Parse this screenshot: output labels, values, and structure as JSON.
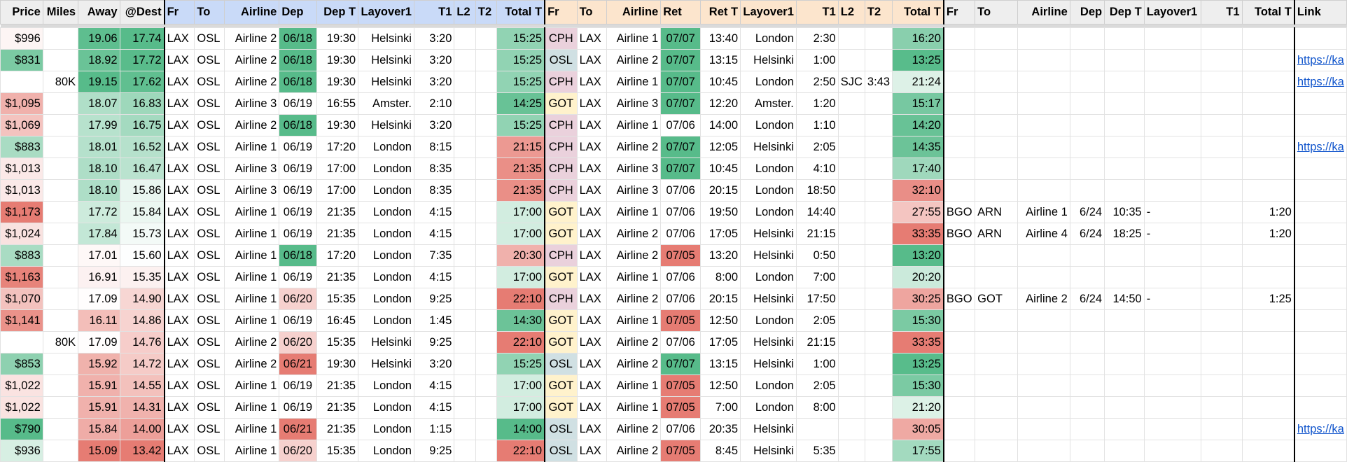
{
  "headers": [
    "Price",
    "Miles",
    "Away",
    "@Dest",
    "Fr",
    "To",
    "Airline",
    "Dep",
    "Dep T",
    "Layover1",
    "T1",
    "L2",
    "T2",
    "Total T",
    "Fr",
    "To",
    "Airline",
    "Ret",
    "Ret T",
    "Layover1",
    "T1",
    "L2",
    "T2",
    "Total T",
    "Fr",
    "To",
    "Airline",
    "Dep",
    "Dep T",
    "Layover1",
    "T1",
    "Total T",
    "Link"
  ],
  "link_label": "https://ka",
  "colors": {
    "header_gray": "#eeeeee",
    "header_blue": "#c9daf8",
    "header_orange": "#fce5cd",
    "green_dark": "#57bb8a",
    "red_dark": "#e67c73",
    "cph": "#ead1dc",
    "got": "#fff2cc",
    "osl": "#d0e0e3",
    "link": "#1155cc"
  },
  "rows": [
    {
      "price": "$996",
      "miles": "",
      "away": "19.06",
      "dest": "17.74",
      "fr": "LAX",
      "to": "OSL",
      "airline": "Airline 2",
      "dep": "06/18",
      "dep_t": "19:30",
      "lay1": "Helsinki",
      "t1": "3:20",
      "l2": "",
      "t2": "",
      "total": "15:25",
      "rfr": "CPH",
      "rto": "LAX",
      "rairline": "Airline 1",
      "ret": "07/07",
      "ret_t": "13:40",
      "rlay1": "London",
      "rt1": "2:30",
      "rl2": "",
      "rt2": "",
      "rtotal": "16:20",
      "xfr": "",
      "xto": "",
      "xairline": "",
      "xdep": "",
      "xdep_t": "",
      "xlay1": "",
      "xt1": "",
      "xtotal": "",
      "link": ""
    },
    {
      "price": "$831",
      "miles": "",
      "away": "18.92",
      "dest": "17.72",
      "fr": "LAX",
      "to": "OSL",
      "airline": "Airline 2",
      "dep": "06/18",
      "dep_t": "19:30",
      "lay1": "Helsinki",
      "t1": "3:20",
      "l2": "",
      "t2": "",
      "total": "15:25",
      "rfr": "OSL",
      "rto": "LAX",
      "rairline": "Airline 2",
      "ret": "07/07",
      "ret_t": "13:15",
      "rlay1": "Helsinki",
      "rt1": "1:00",
      "rl2": "",
      "rt2": "",
      "rtotal": "13:25",
      "xfr": "",
      "xto": "",
      "xairline": "",
      "xdep": "",
      "xdep_t": "",
      "xlay1": "",
      "xt1": "",
      "xtotal": "",
      "link": "https://ka"
    },
    {
      "price": "",
      "miles": "80K",
      "away": "19.15",
      "dest": "17.62",
      "fr": "LAX",
      "to": "OSL",
      "airline": "Airline 2",
      "dep": "06/18",
      "dep_t": "19:30",
      "lay1": "Helsinki",
      "t1": "3:20",
      "l2": "",
      "t2": "",
      "total": "15:25",
      "rfr": "CPH",
      "rto": "LAX",
      "rairline": "Airline 1",
      "ret": "07/07",
      "ret_t": "10:45",
      "rlay1": "London",
      "rt1": "2:50",
      "rl2": "SJC",
      "rt2": "3:43",
      "rtotal": "21:24",
      "xfr": "",
      "xto": "",
      "xairline": "",
      "xdep": "",
      "xdep_t": "",
      "xlay1": "",
      "xt1": "",
      "xtotal": "",
      "link": "https://ka"
    },
    {
      "price": "$1,095",
      "miles": "",
      "away": "18.07",
      "dest": "16.83",
      "fr": "LAX",
      "to": "OSL",
      "airline": "Airline 3",
      "dep": "06/19",
      "dep_t": "16:55",
      "lay1": "Amster.",
      "t1": "2:10",
      "l2": "",
      "t2": "",
      "total": "14:25",
      "rfr": "GOT",
      "rto": "LAX",
      "rairline": "Airline 3",
      "ret": "07/07",
      "ret_t": "12:20",
      "rlay1": "Amster.",
      "rt1": "1:20",
      "rl2": "",
      "rt2": "",
      "rtotal": "15:17",
      "xfr": "",
      "xto": "",
      "xairline": "",
      "xdep": "",
      "xdep_t": "",
      "xlay1": "",
      "xt1": "",
      "xtotal": "",
      "link": ""
    },
    {
      "price": "$1,069",
      "miles": "",
      "away": "17.99",
      "dest": "16.75",
      "fr": "LAX",
      "to": "OSL",
      "airline": "Airline 2",
      "dep": "06/18",
      "dep_t": "19:30",
      "lay1": "Helsinki",
      "t1": "3:20",
      "l2": "",
      "t2": "",
      "total": "15:25",
      "rfr": "CPH",
      "rto": "LAX",
      "rairline": "Airline 1",
      "ret": "07/06",
      "ret_t": "14:00",
      "rlay1": "London",
      "rt1": "1:10",
      "rl2": "",
      "rt2": "",
      "rtotal": "14:20",
      "xfr": "",
      "xto": "",
      "xairline": "",
      "xdep": "",
      "xdep_t": "",
      "xlay1": "",
      "xt1": "",
      "xtotal": "",
      "link": ""
    },
    {
      "price": "$883",
      "miles": "",
      "away": "18.01",
      "dest": "16.52",
      "fr": "LAX",
      "to": "OSL",
      "airline": "Airline 1",
      "dep": "06/19",
      "dep_t": "17:20",
      "lay1": "London",
      "t1": "8:15",
      "l2": "",
      "t2": "",
      "total": "21:15",
      "rfr": "CPH",
      "rto": "LAX",
      "rairline": "Airline 2",
      "ret": "07/07",
      "ret_t": "12:05",
      "rlay1": "Helsinki",
      "rt1": "2:05",
      "rl2": "",
      "rt2": "",
      "rtotal": "14:35",
      "xfr": "",
      "xto": "",
      "xairline": "",
      "xdep": "",
      "xdep_t": "",
      "xlay1": "",
      "xt1": "",
      "xtotal": "",
      "link": "https://ka"
    },
    {
      "price": "$1,013",
      "miles": "",
      "away": "18.10",
      "dest": "16.47",
      "fr": "LAX",
      "to": "OSL",
      "airline": "Airline 3",
      "dep": "06/19",
      "dep_t": "17:00",
      "lay1": "London",
      "t1": "8:35",
      "l2": "",
      "t2": "",
      "total": "21:35",
      "rfr": "CPH",
      "rto": "LAX",
      "rairline": "Airline 3",
      "ret": "07/07",
      "ret_t": "10:45",
      "rlay1": "London",
      "rt1": "4:10",
      "rl2": "",
      "rt2": "",
      "rtotal": "17:40",
      "xfr": "",
      "xto": "",
      "xairline": "",
      "xdep": "",
      "xdep_t": "",
      "xlay1": "",
      "xt1": "",
      "xtotal": "",
      "link": ""
    },
    {
      "price": "$1,013",
      "miles": "",
      "away": "18.10",
      "dest": "15.86",
      "fr": "LAX",
      "to": "OSL",
      "airline": "Airline 3",
      "dep": "06/19",
      "dep_t": "17:00",
      "lay1": "London",
      "t1": "8:35",
      "l2": "",
      "t2": "",
      "total": "21:35",
      "rfr": "CPH",
      "rto": "LAX",
      "rairline": "Airline 3",
      "ret": "07/06",
      "ret_t": "20:15",
      "rlay1": "London",
      "rt1": "18:50",
      "rl2": "",
      "rt2": "",
      "rtotal": "32:10",
      "xfr": "",
      "xto": "",
      "xairline": "",
      "xdep": "",
      "xdep_t": "",
      "xlay1": "",
      "xt1": "",
      "xtotal": "",
      "link": ""
    },
    {
      "price": "$1,173",
      "miles": "",
      "away": "17.72",
      "dest": "15.84",
      "fr": "LAX",
      "to": "OSL",
      "airline": "Airline 1",
      "dep": "06/19",
      "dep_t": "21:35",
      "lay1": "London",
      "t1": "4:15",
      "l2": "",
      "t2": "",
      "total": "17:00",
      "rfr": "GOT",
      "rto": "LAX",
      "rairline": "Airline 1",
      "ret": "07/06",
      "ret_t": "19:50",
      "rlay1": "London",
      "rt1": "14:40",
      "rl2": "",
      "rt2": "",
      "rtotal": "27:55",
      "xfr": "BGO",
      "xto": "ARN",
      "xairline": "Airline 1",
      "xdep": "6/24",
      "xdep_t": "10:35",
      "xlay1": "-",
      "xt1": "",
      "xtotal": "1:20",
      "link": ""
    },
    {
      "price": "$1,024",
      "miles": "",
      "away": "17.84",
      "dest": "15.73",
      "fr": "LAX",
      "to": "OSL",
      "airline": "Airline 1",
      "dep": "06/19",
      "dep_t": "21:35",
      "lay1": "London",
      "t1": "4:15",
      "l2": "",
      "t2": "",
      "total": "17:00",
      "rfr": "GOT",
      "rto": "LAX",
      "rairline": "Airline 2",
      "ret": "07/06",
      "ret_t": "17:05",
      "rlay1": "Helsinki",
      "rt1": "21:15",
      "rl2": "",
      "rt2": "",
      "rtotal": "33:35",
      "xfr": "BGO",
      "xto": "ARN",
      "xairline": "Airline 4",
      "xdep": "6/24",
      "xdep_t": "18:25",
      "xlay1": "-",
      "xt1": "",
      "xtotal": "1:20",
      "link": ""
    },
    {
      "price": "$883",
      "miles": "",
      "away": "17.01",
      "dest": "15.60",
      "fr": "LAX",
      "to": "OSL",
      "airline": "Airline 1",
      "dep": "06/18",
      "dep_t": "17:20",
      "lay1": "London",
      "t1": "7:35",
      "l2": "",
      "t2": "",
      "total": "20:30",
      "rfr": "CPH",
      "rto": "LAX",
      "rairline": "Airline 2",
      "ret": "07/05",
      "ret_t": "13:20",
      "rlay1": "Helsinki",
      "rt1": "0:50",
      "rl2": "",
      "rt2": "",
      "rtotal": "13:20",
      "xfr": "",
      "xto": "",
      "xairline": "",
      "xdep": "",
      "xdep_t": "",
      "xlay1": "",
      "xt1": "",
      "xtotal": "",
      "link": ""
    },
    {
      "price": "$1,163",
      "miles": "",
      "away": "16.91",
      "dest": "15.35",
      "fr": "LAX",
      "to": "OSL",
      "airline": "Airline 1",
      "dep": "06/19",
      "dep_t": "21:35",
      "lay1": "London",
      "t1": "4:15",
      "l2": "",
      "t2": "",
      "total": "17:00",
      "rfr": "GOT",
      "rto": "LAX",
      "rairline": "Airline 1",
      "ret": "07/06",
      "ret_t": "8:00",
      "rlay1": "London",
      "rt1": "7:00",
      "rl2": "",
      "rt2": "",
      "rtotal": "20:20",
      "xfr": "",
      "xto": "",
      "xairline": "",
      "xdep": "",
      "xdep_t": "",
      "xlay1": "",
      "xt1": "",
      "xtotal": "",
      "link": ""
    },
    {
      "price": "$1,070",
      "miles": "",
      "away": "17.09",
      "dest": "14.90",
      "fr": "LAX",
      "to": "OSL",
      "airline": "Airline 1",
      "dep": "06/20",
      "dep_t": "15:35",
      "lay1": "London",
      "t1": "9:25",
      "l2": "",
      "t2": "",
      "total": "22:10",
      "rfr": "CPH",
      "rto": "LAX",
      "rairline": "Airline 2",
      "ret": "07/06",
      "ret_t": "20:15",
      "rlay1": "Helsinki",
      "rt1": "17:50",
      "rl2": "",
      "rt2": "",
      "rtotal": "30:25",
      "xfr": "BGO",
      "xto": "GOT",
      "xairline": "Airline 2",
      "xdep": "6/24",
      "xdep_t": "14:50",
      "xlay1": "-",
      "xt1": "",
      "xtotal": "1:25",
      "link": ""
    },
    {
      "price": "$1,141",
      "miles": "",
      "away": "16.11",
      "dest": "14.86",
      "fr": "LAX",
      "to": "OSL",
      "airline": "Airline 1",
      "dep": "06/19",
      "dep_t": "16:45",
      "lay1": "London",
      "t1": "1:45",
      "l2": "",
      "t2": "",
      "total": "14:30",
      "rfr": "GOT",
      "rto": "LAX",
      "rairline": "Airline 1",
      "ret": "07/05",
      "ret_t": "12:50",
      "rlay1": "London",
      "rt1": "2:05",
      "rl2": "",
      "rt2": "",
      "rtotal": "15:30",
      "xfr": "",
      "xto": "",
      "xairline": "",
      "xdep": "",
      "xdep_t": "",
      "xlay1": "",
      "xt1": "",
      "xtotal": "",
      "link": ""
    },
    {
      "price": "",
      "miles": "80K",
      "away": "17.09",
      "dest": "14.76",
      "fr": "LAX",
      "to": "OSL",
      "airline": "Airline 2",
      "dep": "06/20",
      "dep_t": "15:35",
      "lay1": "Helsinki",
      "t1": "9:25",
      "l2": "",
      "t2": "",
      "total": "22:10",
      "rfr": "GOT",
      "rto": "LAX",
      "rairline": "Airline 2",
      "ret": "07/06",
      "ret_t": "17:05",
      "rlay1": "Helsinki",
      "rt1": "21:15",
      "rl2": "",
      "rt2": "",
      "rtotal": "33:35",
      "xfr": "",
      "xto": "",
      "xairline": "",
      "xdep": "",
      "xdep_t": "",
      "xlay1": "",
      "xt1": "",
      "xtotal": "",
      "link": ""
    },
    {
      "price": "$853",
      "miles": "",
      "away": "15.92",
      "dest": "14.72",
      "fr": "LAX",
      "to": "OSL",
      "airline": "Airline 2",
      "dep": "06/21",
      "dep_t": "19:30",
      "lay1": "Helsinki",
      "t1": "3:20",
      "l2": "",
      "t2": "",
      "total": "15:25",
      "rfr": "OSL",
      "rto": "LAX",
      "rairline": "Airline 2",
      "ret": "07/07",
      "ret_t": "13:15",
      "rlay1": "Helsinki",
      "rt1": "1:00",
      "rl2": "",
      "rt2": "",
      "rtotal": "13:25",
      "xfr": "",
      "xto": "",
      "xairline": "",
      "xdep": "",
      "xdep_t": "",
      "xlay1": "",
      "xt1": "",
      "xtotal": "",
      "link": ""
    },
    {
      "price": "$1,022",
      "miles": "",
      "away": "15.91",
      "dest": "14.55",
      "fr": "LAX",
      "to": "OSL",
      "airline": "Airline 1",
      "dep": "06/19",
      "dep_t": "21:35",
      "lay1": "London",
      "t1": "4:15",
      "l2": "",
      "t2": "",
      "total": "17:00",
      "rfr": "GOT",
      "rto": "LAX",
      "rairline": "Airline 1",
      "ret": "07/05",
      "ret_t": "12:50",
      "rlay1": "London",
      "rt1": "2:05",
      "rl2": "",
      "rt2": "",
      "rtotal": "15:30",
      "xfr": "",
      "xto": "",
      "xairline": "",
      "xdep": "",
      "xdep_t": "",
      "xlay1": "",
      "xt1": "",
      "xtotal": "",
      "link": ""
    },
    {
      "price": "$1,022",
      "miles": "",
      "away": "15.91",
      "dest": "14.31",
      "fr": "LAX",
      "to": "OSL",
      "airline": "Airline 1",
      "dep": "06/19",
      "dep_t": "21:35",
      "lay1": "London",
      "t1": "4:15",
      "l2": "",
      "t2": "",
      "total": "17:00",
      "rfr": "GOT",
      "rto": "LAX",
      "rairline": "Airline 1",
      "ret": "07/05",
      "ret_t": "7:00",
      "rlay1": "London",
      "rt1": "8:00",
      "rl2": "",
      "rt2": "",
      "rtotal": "21:20",
      "xfr": "",
      "xto": "",
      "xairline": "",
      "xdep": "",
      "xdep_t": "",
      "xlay1": "",
      "xt1": "",
      "xtotal": "",
      "link": ""
    },
    {
      "price": "$790",
      "miles": "",
      "away": "15.84",
      "dest": "14.00",
      "fr": "LAX",
      "to": "OSL",
      "airline": "Airline 1",
      "dep": "06/21",
      "dep_t": "21:35",
      "lay1": "London",
      "t1": "1:15",
      "l2": "",
      "t2": "",
      "total": "14:00",
      "rfr": "OSL",
      "rto": "LAX",
      "rairline": "Airline 2",
      "ret": "07/06",
      "ret_t": "20:35",
      "rlay1": "Helsinki",
      "rt1": "",
      "rl2": "",
      "rt2": "",
      "rtotal": "30:05",
      "xfr": "",
      "xto": "",
      "xairline": "",
      "xdep": "",
      "xdep_t": "",
      "xlay1": "",
      "xt1": "",
      "xtotal": "",
      "link": "https://ka"
    },
    {
      "price": "$936",
      "miles": "",
      "away": "15.09",
      "dest": "13.42",
      "fr": "LAX",
      "to": "OSL",
      "airline": "Airline 1",
      "dep": "06/20",
      "dep_t": "15:35",
      "lay1": "London",
      "t1": "9:25",
      "l2": "",
      "t2": "",
      "total": "22:10",
      "rfr": "OSL",
      "rto": "LAX",
      "rairline": "Airline 2",
      "ret": "07/05",
      "ret_t": "8:45",
      "rlay1": "Helsinki",
      "rt1": "5:35",
      "rl2": "",
      "rt2": "",
      "rtotal": "17:55",
      "xfr": "",
      "xto": "",
      "xairline": "",
      "xdep": "",
      "xdep_t": "",
      "xlay1": "",
      "xt1": "",
      "xtotal": "",
      "link": ""
    }
  ]
}
